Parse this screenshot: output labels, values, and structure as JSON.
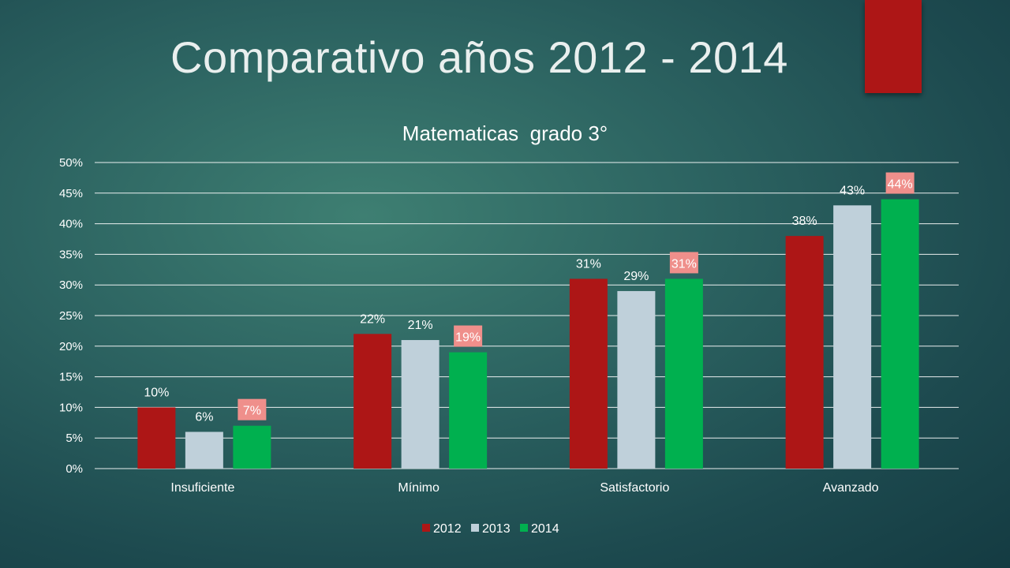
{
  "slide": {
    "title": "Comparativo años 2012 - 2014",
    "accent_color": "#ad1616"
  },
  "chart_data": {
    "type": "bar",
    "title": "Matematicas  grado 3°",
    "categories": [
      "Insuficiente",
      "Mínimo",
      "Satisfactorio",
      "Avanzado"
    ],
    "series": [
      {
        "name": "2012",
        "color": "#ad1616",
        "values": [
          10,
          22,
          31,
          38
        ],
        "labels": [
          "10%",
          "22%",
          "31%",
          "38%"
        ],
        "label_highlight": false
      },
      {
        "name": "2013",
        "color": "#bfd0da",
        "values": [
          6,
          21,
          29,
          43
        ],
        "labels": [
          "6%",
          "21%",
          "29%",
          "43%"
        ],
        "label_highlight": false
      },
      {
        "name": "2014",
        "color": "#00b04f",
        "values": [
          7,
          19,
          31,
          44
        ],
        "labels": [
          "7%",
          "19%",
          "31%",
          "44%"
        ],
        "label_highlight": true,
        "label_bg": "#ef8f8b"
      }
    ],
    "ylim": [
      0,
      50
    ],
    "ytick_step": 5,
    "ytick_labels": [
      "0%",
      "5%",
      "10%",
      "15%",
      "20%",
      "25%",
      "30%",
      "35%",
      "40%",
      "45%",
      "50%"
    ],
    "grid": true,
    "legend_position": "bottom",
    "xlabel": "",
    "ylabel": ""
  }
}
